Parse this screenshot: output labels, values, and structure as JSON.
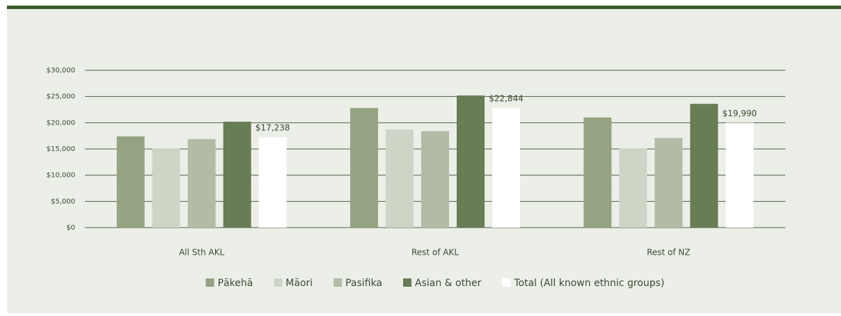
{
  "chart_data": {
    "type": "bar",
    "categories": [
      "All Sth AKL",
      "Rest of AKL",
      "Rest of NZ"
    ],
    "series": [
      {
        "name": "Pākehā",
        "color": "#95a383",
        "values": [
          17400,
          22800,
          21000
        ]
      },
      {
        "name": "Māori",
        "color": "#cdd5c6",
        "values": [
          15100,
          18700,
          15100
        ]
      },
      {
        "name": "Pasifika",
        "color": "#b3bba6",
        "values": [
          16900,
          18400,
          17100
        ]
      },
      {
        "name": "Asian & other",
        "color": "#687c55",
        "values": [
          20200,
          25200,
          23600
        ]
      },
      {
        "name": "Total (All known ethnic groups)",
        "color": "#ffffff",
        "values": [
          17238,
          22844,
          19990
        ],
        "value_labels": [
          "$17,238",
          "$22,844",
          "$19,990"
        ]
      }
    ],
    "ylim": [
      0,
      30000
    ],
    "yticks": [
      {
        "value": 0,
        "label": "$0"
      },
      {
        "value": 5000,
        "label": "$5,000"
      },
      {
        "value": 10000,
        "label": "$10,000"
      },
      {
        "value": 15000,
        "label": "$15,000"
      },
      {
        "value": 20000,
        "label": "$20,000"
      },
      {
        "value": 25000,
        "label": "$25,000"
      },
      {
        "value": 30000,
        "label": "$30,000"
      }
    ],
    "grid": true,
    "legend": "bottom"
  }
}
